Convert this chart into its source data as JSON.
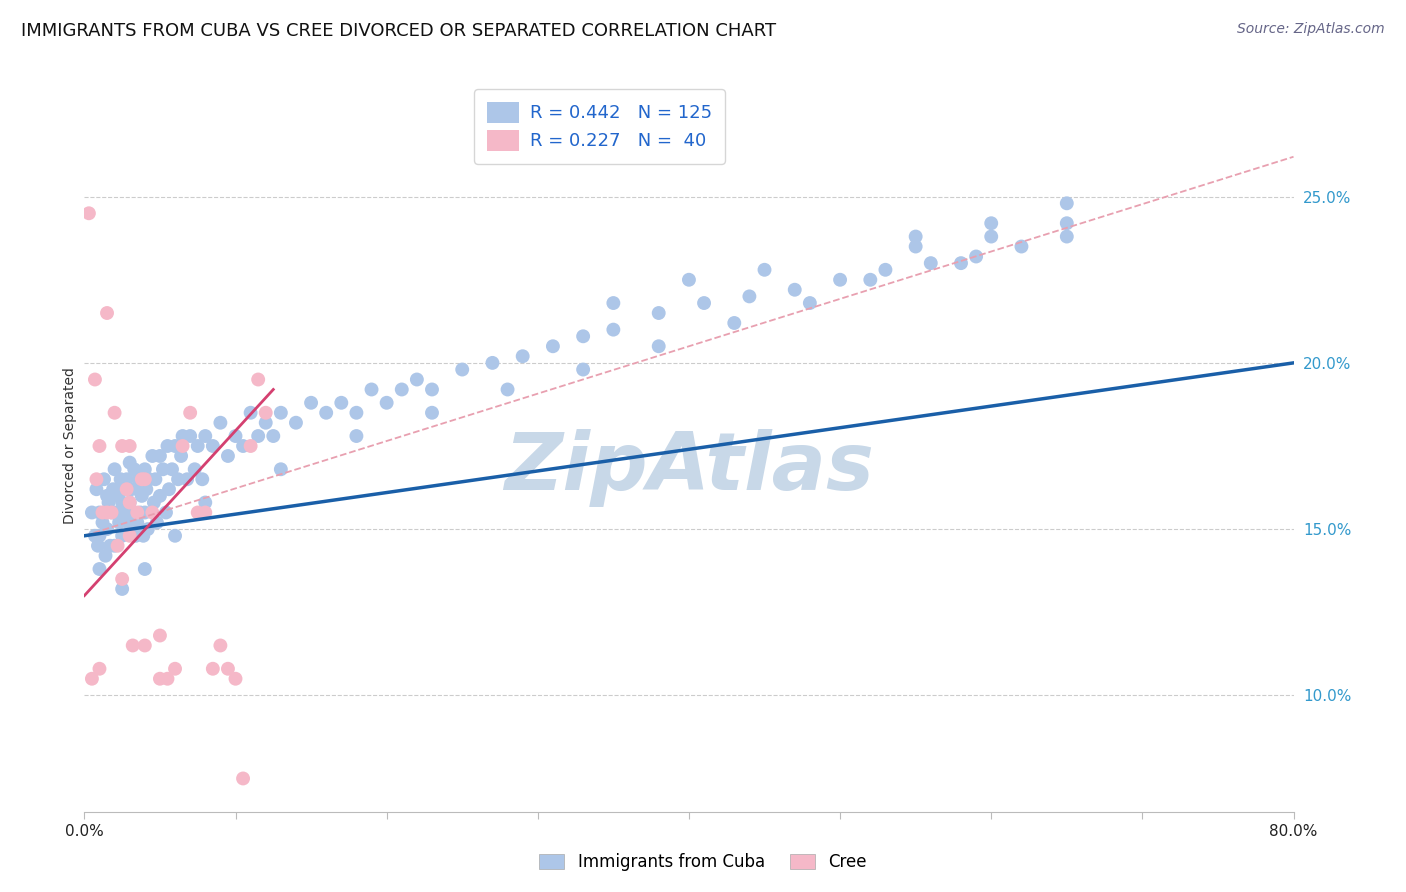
{
  "title": "IMMIGRANTS FROM CUBA VS CREE DIVORCED OR SEPARATED CORRELATION CHART",
  "source": "Source: ZipAtlas.com",
  "ylabel": "Divorced or Separated",
  "ytick_labels": [
    "10.0%",
    "15.0%",
    "20.0%",
    "25.0%"
  ],
  "ytick_values": [
    0.1,
    0.15,
    0.2,
    0.25
  ],
  "xlim": [
    0.0,
    0.8
  ],
  "ylim": [
    0.065,
    0.285
  ],
  "legend_r1": "R = 0.442",
  "legend_n1": "N = 125",
  "legend_r2": "R = 0.227",
  "legend_n2": "N =  40",
  "blue_scatter_x": [
    0.005,
    0.007,
    0.008,
    0.009,
    0.01,
    0.01,
    0.01,
    0.012,
    0.013,
    0.014,
    0.015,
    0.015,
    0.016,
    0.017,
    0.018,
    0.019,
    0.02,
    0.02,
    0.02,
    0.022,
    0.023,
    0.024,
    0.025,
    0.025,
    0.026,
    0.027,
    0.028,
    0.029,
    0.03,
    0.03,
    0.031,
    0.032,
    0.033,
    0.034,
    0.035,
    0.035,
    0.036,
    0.037,
    0.038,
    0.039,
    0.04,
    0.04,
    0.041,
    0.042,
    0.043,
    0.045,
    0.046,
    0.047,
    0.048,
    0.05,
    0.05,
    0.052,
    0.054,
    0.055,
    0.056,
    0.058,
    0.06,
    0.062,
    0.064,
    0.065,
    0.068,
    0.07,
    0.073,
    0.075,
    0.078,
    0.08,
    0.085,
    0.09,
    0.095,
    0.1,
    0.105,
    0.11,
    0.115,
    0.12,
    0.125,
    0.13,
    0.14,
    0.15,
    0.16,
    0.17,
    0.18,
    0.19,
    0.2,
    0.21,
    0.22,
    0.23,
    0.25,
    0.27,
    0.29,
    0.31,
    0.33,
    0.35,
    0.38,
    0.41,
    0.44,
    0.47,
    0.5,
    0.53,
    0.56,
    0.59,
    0.62,
    0.65,
    0.35,
    0.4,
    0.45,
    0.55,
    0.6,
    0.65,
    0.55,
    0.6,
    0.65,
    0.58,
    0.52,
    0.48,
    0.43,
    0.38,
    0.33,
    0.28,
    0.23,
    0.18,
    0.13,
    0.08,
    0.06,
    0.04,
    0.025
  ],
  "blue_scatter_y": [
    0.155,
    0.148,
    0.162,
    0.145,
    0.155,
    0.148,
    0.138,
    0.152,
    0.165,
    0.142,
    0.16,
    0.15,
    0.158,
    0.145,
    0.155,
    0.162,
    0.168,
    0.155,
    0.145,
    0.16,
    0.152,
    0.165,
    0.158,
    0.148,
    0.162,
    0.155,
    0.165,
    0.152,
    0.17,
    0.158,
    0.162,
    0.155,
    0.168,
    0.148,
    0.162,
    0.152,
    0.165,
    0.155,
    0.16,
    0.148,
    0.168,
    0.155,
    0.162,
    0.15,
    0.165,
    0.172,
    0.158,
    0.165,
    0.152,
    0.172,
    0.16,
    0.168,
    0.155,
    0.175,
    0.162,
    0.168,
    0.175,
    0.165,
    0.172,
    0.178,
    0.165,
    0.178,
    0.168,
    0.175,
    0.165,
    0.178,
    0.175,
    0.182,
    0.172,
    0.178,
    0.175,
    0.185,
    0.178,
    0.182,
    0.178,
    0.185,
    0.182,
    0.188,
    0.185,
    0.188,
    0.185,
    0.192,
    0.188,
    0.192,
    0.195,
    0.192,
    0.198,
    0.2,
    0.202,
    0.205,
    0.208,
    0.21,
    0.215,
    0.218,
    0.22,
    0.222,
    0.225,
    0.228,
    0.23,
    0.232,
    0.235,
    0.238,
    0.218,
    0.225,
    0.228,
    0.238,
    0.242,
    0.248,
    0.235,
    0.238,
    0.242,
    0.23,
    0.225,
    0.218,
    0.212,
    0.205,
    0.198,
    0.192,
    0.185,
    0.178,
    0.168,
    0.158,
    0.148,
    0.138,
    0.132
  ],
  "pink_scatter_x": [
    0.003,
    0.005,
    0.007,
    0.008,
    0.01,
    0.01,
    0.012,
    0.015,
    0.015,
    0.018,
    0.02,
    0.022,
    0.025,
    0.025,
    0.028,
    0.03,
    0.03,
    0.03,
    0.032,
    0.035,
    0.038,
    0.04,
    0.04,
    0.045,
    0.05,
    0.05,
    0.055,
    0.06,
    0.065,
    0.07,
    0.075,
    0.08,
    0.085,
    0.09,
    0.095,
    0.1,
    0.105,
    0.11,
    0.115,
    0.12
  ],
  "pink_scatter_y": [
    0.245,
    0.105,
    0.195,
    0.165,
    0.175,
    0.108,
    0.155,
    0.215,
    0.155,
    0.155,
    0.185,
    0.145,
    0.175,
    0.135,
    0.162,
    0.175,
    0.158,
    0.148,
    0.115,
    0.155,
    0.165,
    0.165,
    0.115,
    0.155,
    0.118,
    0.105,
    0.105,
    0.108,
    0.175,
    0.185,
    0.155,
    0.155,
    0.108,
    0.115,
    0.108,
    0.105,
    0.075,
    0.175,
    0.195,
    0.185
  ],
  "blue_line_x": [
    0.0,
    0.8
  ],
  "blue_line_y": [
    0.148,
    0.2
  ],
  "pink_line_x": [
    0.0,
    0.125
  ],
  "pink_line_y": [
    0.13,
    0.192
  ],
  "dashed_line_x": [
    0.0,
    0.8
  ],
  "dashed_line_y": [
    0.148,
    0.262
  ],
  "marker_size": 100,
  "blue_scatter_color": "#adc6e8",
  "pink_scatter_color": "#f5b8c8",
  "blue_line_color": "#1a5fa8",
  "pink_line_color": "#d44070",
  "dashed_line_color": "#e8a0b0",
  "grid_color": "#cccccc",
  "background_color": "#ffffff",
  "watermark_text": "ZipAtlas",
  "watermark_color": "#c8d8e8",
  "title_fontsize": 13,
  "tick_fontsize": 11,
  "source_fontsize": 10,
  "legend_color_text": "#2266cc",
  "legend_color_r2": "#cc3366"
}
